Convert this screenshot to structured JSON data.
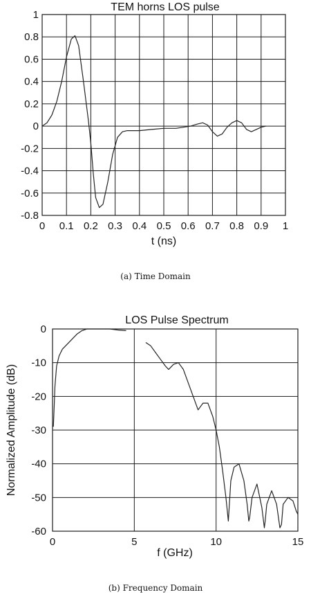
{
  "chart_data": [
    {
      "type": "line",
      "title": "TEM horns LOS pulse",
      "xlabel": "t (ns)",
      "ylabel": "",
      "xlim": [
        0,
        1
      ],
      "ylim": [
        -0.8,
        1
      ],
      "xticks": [
        0,
        0.1,
        0.2,
        0.3,
        0.4,
        0.5,
        0.6,
        0.7,
        0.8,
        0.9,
        1
      ],
      "yticks": [
        1,
        0.8,
        0.6,
        0.4,
        0.2,
        0,
        -0.2,
        -0.4,
        -0.6,
        -0.8
      ],
      "xtick_labels": [
        "0",
        "0.1",
        "0.2",
        "0.3",
        "0.4",
        "0.5",
        "0.6",
        "0.7",
        "0.8",
        "0.9",
        "1"
      ],
      "ytick_labels": [
        "1",
        "0.8",
        "0.6",
        "0.4",
        "0.2",
        "0",
        "-0.2",
        "-0.4",
        "-0.6",
        "-0.8"
      ],
      "grid": true,
      "caption": "(a) Time Domain",
      "series": [
        {
          "x": [
            0,
            0.02,
            0.04,
            0.06,
            0.08,
            0.1,
            0.12,
            0.135,
            0.15,
            0.17,
            0.19,
            0.2,
            0.21,
            0.22,
            0.235,
            0.25,
            0.27,
            0.29,
            0.31,
            0.33,
            0.35,
            0.4,
            0.45,
            0.5,
            0.55,
            0.58,
            0.61,
            0.64,
            0.66,
            0.68,
            0.7,
            0.72,
            0.74,
            0.76,
            0.78,
            0.8,
            0.82,
            0.84,
            0.86,
            0.88,
            0.9,
            0.92
          ],
          "y": [
            0,
            0.03,
            0.1,
            0.22,
            0.4,
            0.62,
            0.78,
            0.81,
            0.72,
            0.4,
            0.05,
            -0.15,
            -0.42,
            -0.64,
            -0.73,
            -0.7,
            -0.5,
            -0.25,
            -0.1,
            -0.05,
            -0.04,
            -0.04,
            -0.03,
            -0.02,
            -0.02,
            -0.01,
            0,
            0.02,
            0.03,
            0.01,
            -0.05,
            -0.09,
            -0.07,
            -0.01,
            0.03,
            0.05,
            0.03,
            -0.03,
            -0.05,
            -0.03,
            -0.01,
            0
          ]
        }
      ]
    },
    {
      "type": "line",
      "title": "LOS Pulse Spectrum",
      "xlabel": "f (GHz)",
      "ylabel": "Normalized Amplitude (dB)",
      "xlim": [
        0,
        15
      ],
      "ylim": [
        -60,
        0
      ],
      "xticks": [
        0,
        5,
        10,
        15
      ],
      "yticks": [
        0,
        -10,
        -20,
        -30,
        -40,
        -50,
        -60
      ],
      "xtick_labels": [
        "0",
        "5",
        "10",
        "15"
      ],
      "ytick_labels": [
        "0",
        "-10",
        "-20",
        "-30",
        "-40",
        "-50",
        "-60"
      ],
      "grid": true,
      "caption": "(b) Frequency Domain",
      "series": [
        {
          "x": [
            0.05,
            0.1,
            0.15,
            0.25,
            0.4,
            0.6,
            0.9,
            1.2,
            1.5,
            1.8,
            2.1,
            2.5,
            3.0,
            3.5,
            4.0,
            4.5,
            null,
            5.7,
            6.0,
            6.3,
            6.6,
            6.9,
            7.1,
            7.4,
            7.7,
            8.0,
            8.3,
            8.6,
            8.9,
            9.2,
            9.5,
            9.8,
            10.0,
            10.2,
            10.4,
            10.6,
            10.75,
            10.9,
            11.1,
            11.4,
            11.7,
            11.9,
            12.0,
            12.05,
            12.2,
            12.5,
            12.8,
            12.95,
            13.0,
            13.1,
            13.4,
            13.7,
            13.9,
            14.0,
            14.1,
            14.4,
            14.7,
            14.9,
            15.0
          ],
          "y": [
            -29,
            -23,
            -17,
            -11,
            -8,
            -6,
            -4.5,
            -3,
            -1.5,
            -0.5,
            0,
            0,
            0,
            0,
            -0.3,
            -0.5,
            null,
            -4,
            -5,
            -7,
            -9,
            -11,
            -12,
            -10.5,
            -10,
            -12,
            -16,
            -20,
            -24,
            -22,
            -22,
            -26,
            -30,
            -35,
            -42,
            -50,
            -57,
            -45,
            -41,
            -40,
            -45,
            -52,
            -57,
            -56,
            -50,
            -46,
            -53,
            -59,
            -57,
            -52,
            -48,
            -52,
            -59,
            -58,
            -52,
            -50,
            -51,
            -54,
            -55
          ]
        }
      ]
    }
  ]
}
